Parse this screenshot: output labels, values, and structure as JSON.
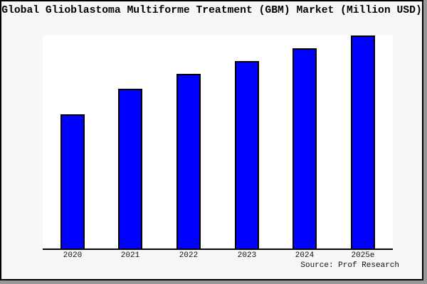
{
  "chart_data": {
    "type": "bar",
    "title": "Global Glioblastoma Multiforme Treatment (GBM) Market (Million USD)",
    "source_text": "Source: Prof Research",
    "categories": [
      "2020",
      "2021",
      "2022",
      "2023",
      "2024",
      "2025e"
    ],
    "values": [
      63,
      75,
      82,
      88,
      94,
      100
    ],
    "values_note": "relative bar heights, tallest bar (2025e) = 100; no y-axis scale shown in chart",
    "xlabel": "",
    "ylabel": "",
    "ylim": [
      0,
      100.7
    ],
    "grid": false,
    "legend": false,
    "y_axis_visible": false,
    "x_axis_line": true,
    "bar_color": "#0000ff",
    "bar_edge_color": "#000000",
    "background_color": "#f7f7f7",
    "plot_background_color": "#ffffff",
    "frame_border_color": "#000000",
    "frame_shadow_color": "#999999"
  }
}
